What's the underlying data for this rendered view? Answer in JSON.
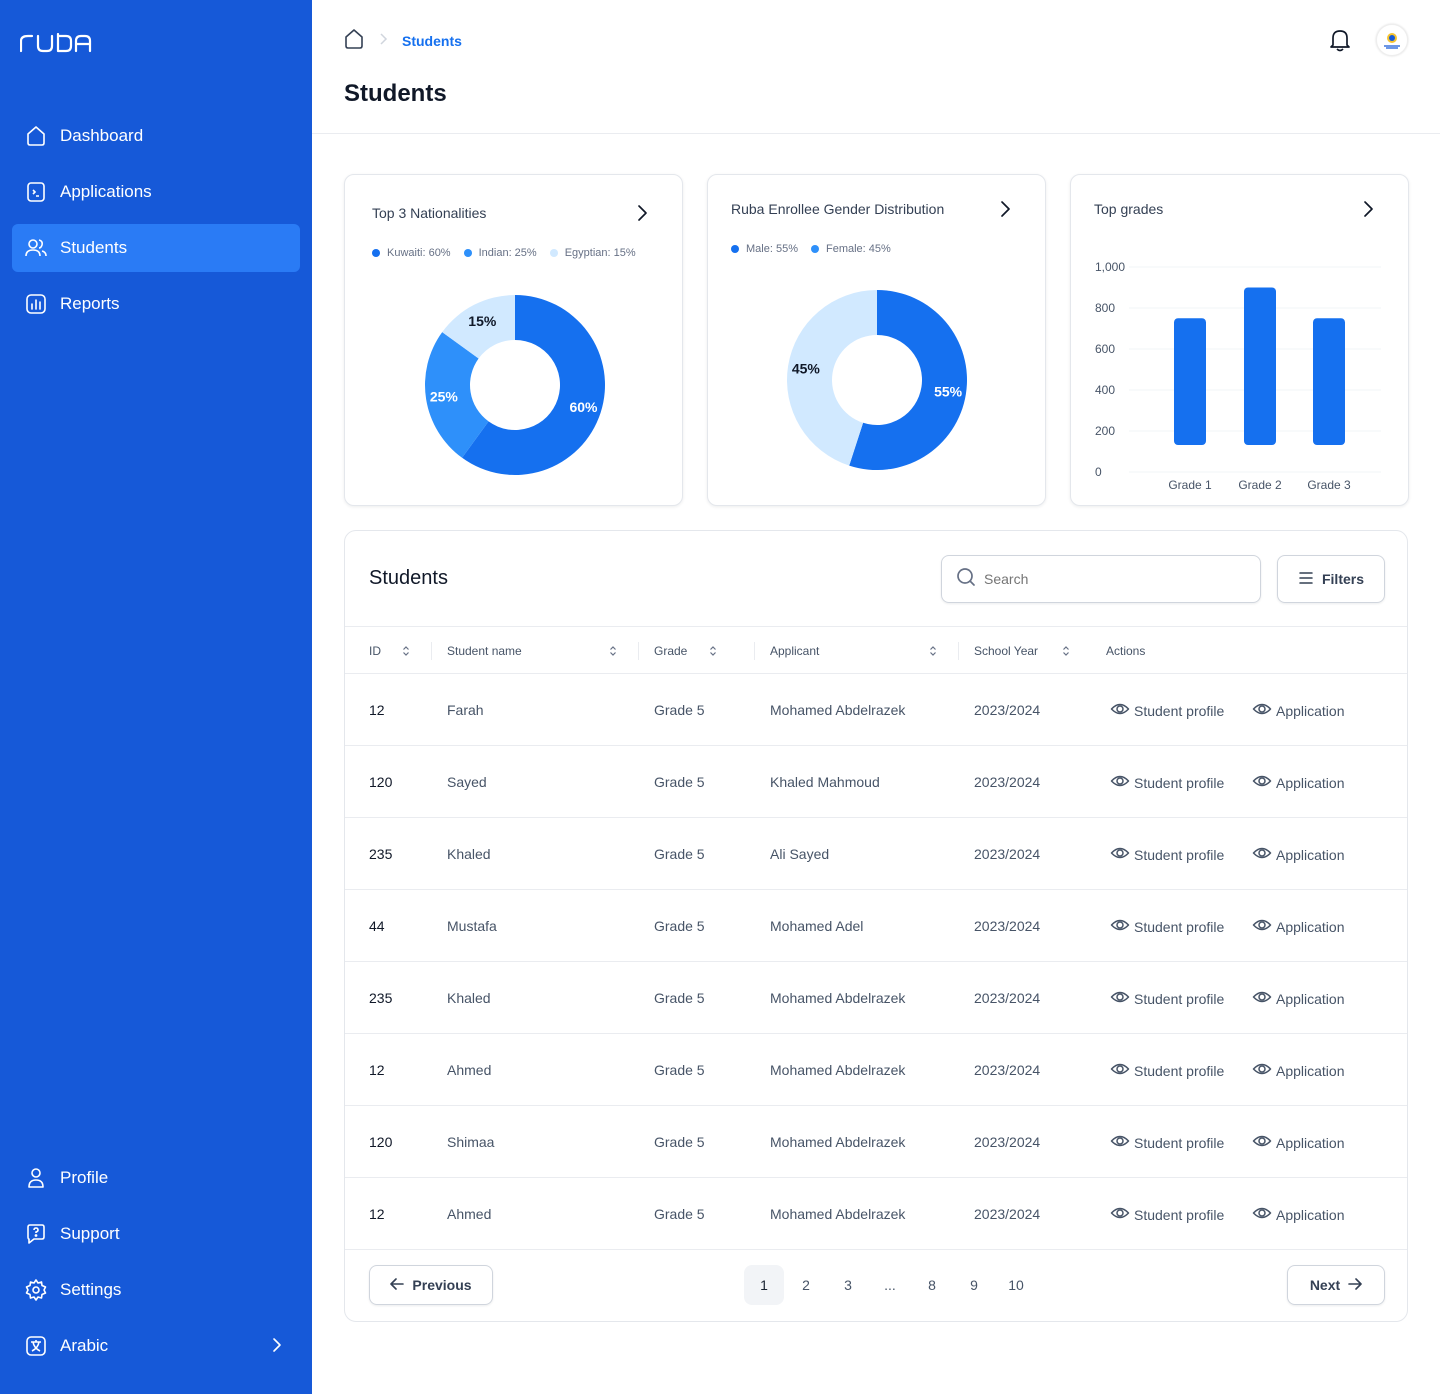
{
  "app": {
    "logo_text": "ruba"
  },
  "sidebar": {
    "items": [
      {
        "label": "Dashboard",
        "icon": "home-icon"
      },
      {
        "label": "Applications",
        "icon": "document-icon"
      },
      {
        "label": "Students",
        "icon": "users-icon",
        "active": true
      },
      {
        "label": "Reports",
        "icon": "bar-chart-icon"
      }
    ],
    "bottom": [
      {
        "label": "Profile",
        "icon": "user-icon"
      },
      {
        "label": "Support",
        "icon": "support-icon"
      },
      {
        "label": "Settings",
        "icon": "gear-icon"
      },
      {
        "label": "Arabic",
        "icon": "translate-icon"
      }
    ]
  },
  "header": {
    "breadcrumb_current": "Students",
    "title": "Students"
  },
  "colors": {
    "sidebar": "#1659d8",
    "sidebar_active": "#2a7bf5",
    "primary": "#1570ef",
    "series1": "#1570ef",
    "series2": "#2e90fa",
    "series3": "#d1e9ff"
  },
  "chart_data": [
    {
      "type": "pie",
      "title": "Top 3 Nationalities",
      "legend": [
        "Kuwaiti: 60%",
        "Indian: 25%",
        "Egyptian: 15%"
      ],
      "labels": [
        "Kuwaiti",
        "Indian",
        "Egyptian"
      ],
      "values": [
        60,
        25,
        15
      ],
      "slice_labels": [
        "60%",
        "25%",
        "15%"
      ]
    },
    {
      "type": "pie",
      "title": "Ruba Enrollee Gender Distribution",
      "legend": [
        "Male: 55%",
        "Female: 45%"
      ],
      "labels": [
        "Male",
        "Female"
      ],
      "values": [
        55,
        45
      ],
      "slice_labels": [
        "55%",
        "45%"
      ]
    },
    {
      "type": "bar",
      "title": "Top grades",
      "categories": [
        "Grade 1",
        "Grade 2",
        "Grade 3"
      ],
      "values": [
        750,
        900,
        750
      ],
      "ylim": [
        0,
        1000
      ],
      "yticks": [
        "1,000",
        "800",
        "600",
        "400",
        "200",
        "0"
      ],
      "ytick_values": [
        1000,
        800,
        600,
        400,
        200,
        0
      ],
      "grid": true
    }
  ],
  "table": {
    "title": "Students",
    "search_placeholder": "Search",
    "filters_label": "Filters",
    "columns": [
      "ID",
      "Student name",
      "Grade",
      "Applicant",
      "School Year",
      "Actions"
    ],
    "action_labels": [
      "Student profile",
      "Application"
    ],
    "rows": [
      [
        "12",
        "Farah",
        "Grade 5",
        "Mohamed Abdelrazek",
        "2023/2024"
      ],
      [
        "120",
        "Sayed",
        "Grade 5",
        "Khaled Mahmoud",
        "2023/2024"
      ],
      [
        "235",
        "Khaled",
        "Grade 5",
        "Ali Sayed",
        "2023/2024"
      ],
      [
        "44",
        "Mustafa",
        "Grade 5",
        "Mohamed Adel",
        "2023/2024"
      ],
      [
        "235",
        "Khaled",
        "Grade 5",
        "Mohamed Abdelrazek",
        "2023/2024"
      ],
      [
        "12",
        "Ahmed",
        "Grade 5",
        "Mohamed Abdelrazek",
        "2023/2024"
      ],
      [
        "120",
        "Shimaa",
        "Grade 5",
        "Mohamed Abdelrazek",
        "2023/2024"
      ],
      [
        "12",
        "Ahmed",
        "Grade 5",
        "Mohamed Abdelrazek",
        "2023/2024"
      ]
    ]
  },
  "pagination": {
    "previous": "Previous",
    "next": "Next",
    "pages": [
      "1",
      "2",
      "3",
      "...",
      "8",
      "9",
      "10"
    ],
    "current": "1"
  }
}
